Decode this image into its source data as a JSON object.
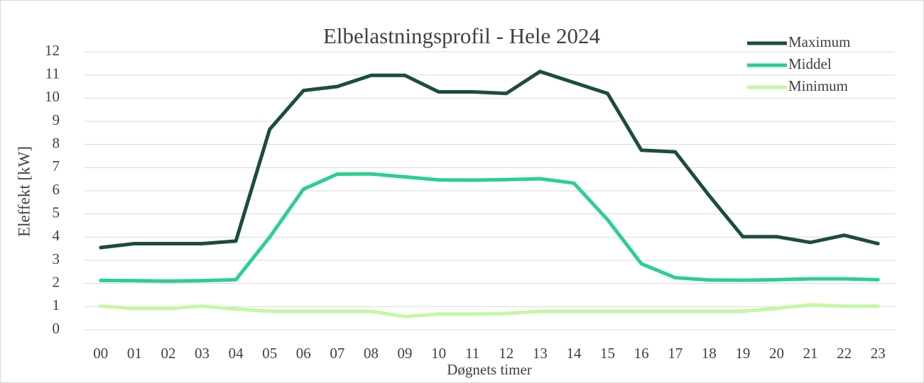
{
  "chart_data": {
    "type": "line",
    "title": "Elbelastningsprofil - Hele 2024",
    "x_label": "Døgnets timer",
    "y_label": "Eleffekt [kW]",
    "categories": [
      "00",
      "01",
      "02",
      "03",
      "04",
      "05",
      "06",
      "07",
      "08",
      "09",
      "10",
      "11",
      "12",
      "13",
      "14",
      "15",
      "16",
      "17",
      "18",
      "19",
      "20",
      "21",
      "22",
      "23"
    ],
    "series": [
      {
        "name": "Maximum",
        "color": "#1b4d3e",
        "values": [
          3.55,
          3.72,
          3.72,
          3.72,
          3.83,
          8.65,
          10.33,
          10.5,
          10.98,
          10.98,
          10.27,
          10.27,
          10.2,
          11.15,
          10.67,
          10.2,
          7.75,
          7.68,
          5.8,
          4.02,
          4.02,
          3.77,
          4.08,
          3.72
        ]
      },
      {
        "name": "Middel",
        "color": "#2bd08c",
        "values": [
          2.13,
          2.12,
          2.1,
          2.12,
          2.16,
          4.0,
          6.07,
          6.72,
          6.73,
          6.6,
          6.47,
          6.46,
          6.48,
          6.52,
          6.33,
          4.75,
          2.85,
          2.25,
          2.15,
          2.14,
          2.16,
          2.2,
          2.2,
          2.16
        ]
      },
      {
        "name": "Minimum",
        "color": "#c6f7a2",
        "values": [
          1.02,
          0.92,
          0.92,
          1.02,
          0.9,
          0.8,
          0.8,
          0.8,
          0.8,
          0.57,
          0.68,
          0.68,
          0.7,
          0.8,
          0.8,
          0.8,
          0.8,
          0.8,
          0.8,
          0.8,
          0.92,
          1.08,
          1.02,
          1.02
        ]
      }
    ],
    "ylim": [
      0,
      12
    ],
    "yticks": [
      0,
      1,
      2,
      3,
      4,
      5,
      6,
      7,
      8,
      9,
      10,
      11,
      12
    ],
    "grid": true,
    "legend": "upper right"
  }
}
